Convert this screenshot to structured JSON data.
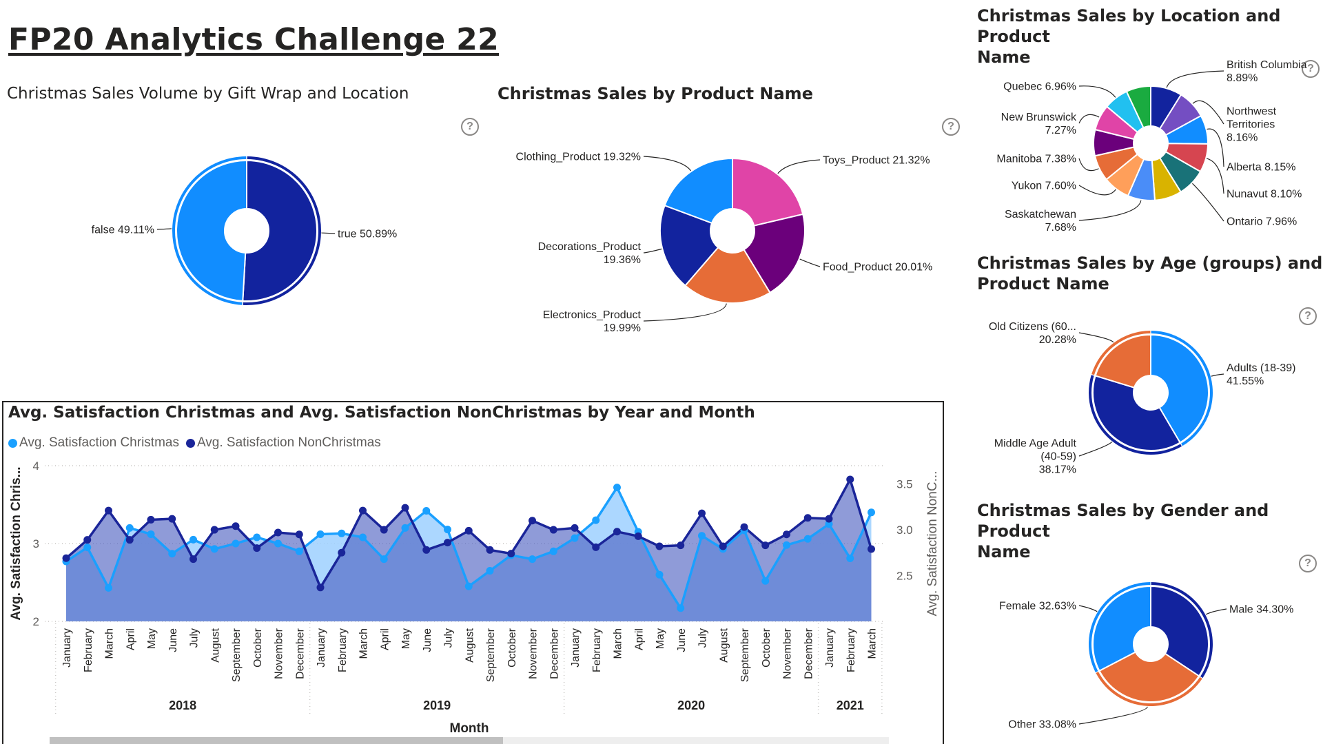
{
  "page": {
    "title": "FP20 Analytics Challenge 22"
  },
  "colors": {
    "light_blue": "#118DFF",
    "dark_blue": "#12239E",
    "orange": "#E66C37",
    "purple": "#6B007B",
    "pink": "#E044A7",
    "line_light": "#1AA0FF",
    "line_dark": "#1A2599"
  },
  "icons": {
    "help": "question-mark-circle"
  },
  "help_glyph": "?",
  "charts": {
    "gift_wrap": {
      "title": "Christmas Sales Volume by Gift Wrap and Location",
      "slices": [
        {
          "name": "true",
          "label": "true 50.89%",
          "value": 50.89,
          "color": "#12239E"
        },
        {
          "name": "false",
          "label": "false 49.11%",
          "value": 49.11,
          "color": "#118DFF"
        }
      ]
    },
    "product": {
      "title": "Christmas Sales by Product Name",
      "slices": [
        {
          "name": "Toys_Product",
          "label": [
            "Toys_Product 21.32%"
          ],
          "value": 21.32,
          "color": "#E044A7"
        },
        {
          "name": "Food_Product",
          "label": [
            "Food_Product 20.01%"
          ],
          "value": 20.01,
          "color": "#6B007B"
        },
        {
          "name": "Electronics_Product",
          "label": [
            "Electronics_Product",
            "19.99%"
          ],
          "value": 19.99,
          "color": "#E66C37"
        },
        {
          "name": "Decorations_Product",
          "label": [
            "Decorations_Product",
            "19.36%"
          ],
          "value": 19.36,
          "color": "#12239E"
        },
        {
          "name": "Clothing_Product",
          "label": [
            "Clothing_Product 19.32%"
          ],
          "value": 19.32,
          "color": "#118DFF"
        }
      ]
    },
    "location": {
      "title": "Christmas Sales by Location and Product Name",
      "title_lines": [
        "Christmas Sales by Location and Product",
        "Name"
      ],
      "slices": [
        {
          "name": "British Columbia",
          "label": [
            "British Columbia",
            "8.89%"
          ],
          "value": 8.89,
          "color": "#12239E"
        },
        {
          "name": "Northwest Territories",
          "label": [
            "Northwest",
            "Territories",
            "8.16%"
          ],
          "value": 8.16,
          "color": "#744EC2"
        },
        {
          "name": "Alberta",
          "label": [
            "Alberta 8.15%"
          ],
          "value": 8.15,
          "color": "#118DFF"
        },
        {
          "name": "Nunavut",
          "label": [
            "Nunavut 8.10%"
          ],
          "value": 8.1,
          "color": "#D64550"
        },
        {
          "name": "Ontario",
          "label": [
            "Ontario 7.96%"
          ],
          "value": 7.96,
          "color": "#197278"
        },
        {
          "name": "Saskatchewan-gold",
          "label": [],
          "value": 7.68,
          "color": "#D9B300"
        },
        {
          "name": "Saskatchewan",
          "label": [
            "Saskatchewan",
            "7.68%"
          ],
          "value": 7.68,
          "color": "#4A8DF8"
        },
        {
          "name": "Yukon",
          "label": [
            "Yukon 7.60%"
          ],
          "value": 7.6,
          "color": "#FF9F5A"
        },
        {
          "name": "Manitoba",
          "label": [
            "Manitoba 7.38%"
          ],
          "value": 7.38,
          "color": "#E66C37"
        },
        {
          "name": "Manitoba-purple",
          "label": [],
          "value": 7.38,
          "color": "#6B007B"
        },
        {
          "name": "New Brunswick",
          "label": [
            "New Brunswick",
            "7.27%"
          ],
          "value": 7.27,
          "color": "#E044A7"
        },
        {
          "name": "Quebec",
          "label": [
            "Quebec 6.96%"
          ],
          "value": 6.96,
          "color": "#21C0F0"
        },
        {
          "name": "Quebec-green",
          "label": [],
          "value": 6.96,
          "color": "#1AAB40"
        }
      ]
    },
    "age": {
      "title": "Christmas Sales by Age (groups) and Product Name",
      "title_lines": [
        "Christmas Sales by Age (groups) and",
        "Product Name"
      ],
      "slices": [
        {
          "name": "Adults (18-39)",
          "label": [
            "Adults (18-39)",
            "41.55%"
          ],
          "value": 41.55,
          "color": "#118DFF"
        },
        {
          "name": "Middle Age Adult (40-59)",
          "label": [
            "Middle Age Adult",
            "(40-59)",
            "38.17%"
          ],
          "value": 38.17,
          "color": "#12239E"
        },
        {
          "name": "Old Citizens (60...",
          "label": [
            "Old Citizens (60...",
            "20.28%"
          ],
          "value": 20.28,
          "color": "#E66C37"
        }
      ]
    },
    "gender": {
      "title": "Christmas Sales by Gender and Product Name",
      "title_lines": [
        "Christmas Sales by Gender and Product",
        "Name"
      ],
      "slices": [
        {
          "name": "Male",
          "label": [
            "Male 34.30%"
          ],
          "value": 34.3,
          "color": "#12239E"
        },
        {
          "name": "Other",
          "label": [
            "Other 33.08%"
          ],
          "value": 33.08,
          "color": "#E66C37"
        },
        {
          "name": "Female",
          "label": [
            "Female 32.63%"
          ],
          "value": 32.63,
          "color": "#118DFF"
        }
      ]
    }
  },
  "line_chart": {
    "title": "Avg. Satisfaction Christmas and Avg. Satisfaction NonChristmas by Year and Month",
    "legend": [
      "Avg. Satisfaction Christmas",
      "Avg. Satisfaction NonChristmas"
    ],
    "y_left_label": "Avg. Satisfaction Chris...",
    "y_right_label": "Avg. Satisfaction NonC...",
    "x_label": "Month"
  },
  "chart_data": {
    "type": "line",
    "title": "Avg. Satisfaction Christmas and Avg. Satisfaction NonChristmas by Year and Month",
    "xlabel": "Month",
    "ylabel": "Avg. Satisfaction Chris...",
    "y2label": "Avg. Satisfaction NonC...",
    "ylim": [
      2,
      4
    ],
    "y_ticks": [
      2,
      3,
      4
    ],
    "y2lim": [
      2.0,
      3.7
    ],
    "y2_ticks": [
      2.5,
      3.0,
      3.5
    ],
    "legend_position": "top-left",
    "grid": "horizontal dotted",
    "years": [
      {
        "label": "2018",
        "months": 12
      },
      {
        "label": "2019",
        "months": 12
      },
      {
        "label": "2020",
        "months": 12
      },
      {
        "label": "2021",
        "months": 3
      }
    ],
    "x": [
      "January",
      "February",
      "March",
      "April",
      "May",
      "June",
      "July",
      "August",
      "September",
      "October",
      "November",
      "December",
      "January",
      "February",
      "March",
      "April",
      "May",
      "June",
      "July",
      "August",
      "September",
      "October",
      "November",
      "December",
      "January",
      "February",
      "March",
      "April",
      "May",
      "June",
      "July",
      "August",
      "September",
      "October",
      "November",
      "December",
      "January",
      "February",
      "March"
    ],
    "series": [
      {
        "name": "Avg. Satisfaction Christmas",
        "axis": "left",
        "color": "#1AA0FF",
        "values": [
          2.77,
          2.95,
          2.43,
          3.2,
          3.12,
          2.87,
          3.05,
          2.93,
          3.0,
          3.08,
          3.0,
          2.9,
          3.12,
          3.13,
          3.08,
          2.8,
          3.2,
          3.42,
          3.18,
          2.45,
          2.65,
          2.85,
          2.8,
          2.9,
          3.07,
          3.3,
          3.72,
          3.15,
          2.6,
          2.17,
          3.1,
          2.93,
          3.17,
          2.52,
          2.98,
          3.06,
          3.25,
          2.81,
          3.4
        ]
      },
      {
        "name": "Avg. Satisfaction NonChristmas",
        "axis": "right",
        "color": "#1A2599",
        "values": [
          2.69,
          2.89,
          3.21,
          2.89,
          3.11,
          3.12,
          2.68,
          3.0,
          3.04,
          2.8,
          2.97,
          2.95,
          2.37,
          2.75,
          3.21,
          3.0,
          3.24,
          2.78,
          2.86,
          2.99,
          2.78,
          2.74,
          3.1,
          3.0,
          3.02,
          2.81,
          2.98,
          2.93,
          2.82,
          2.83,
          3.18,
          2.82,
          3.03,
          2.83,
          2.95,
          3.13,
          3.12,
          3.55,
          2.79
        ]
      }
    ]
  }
}
